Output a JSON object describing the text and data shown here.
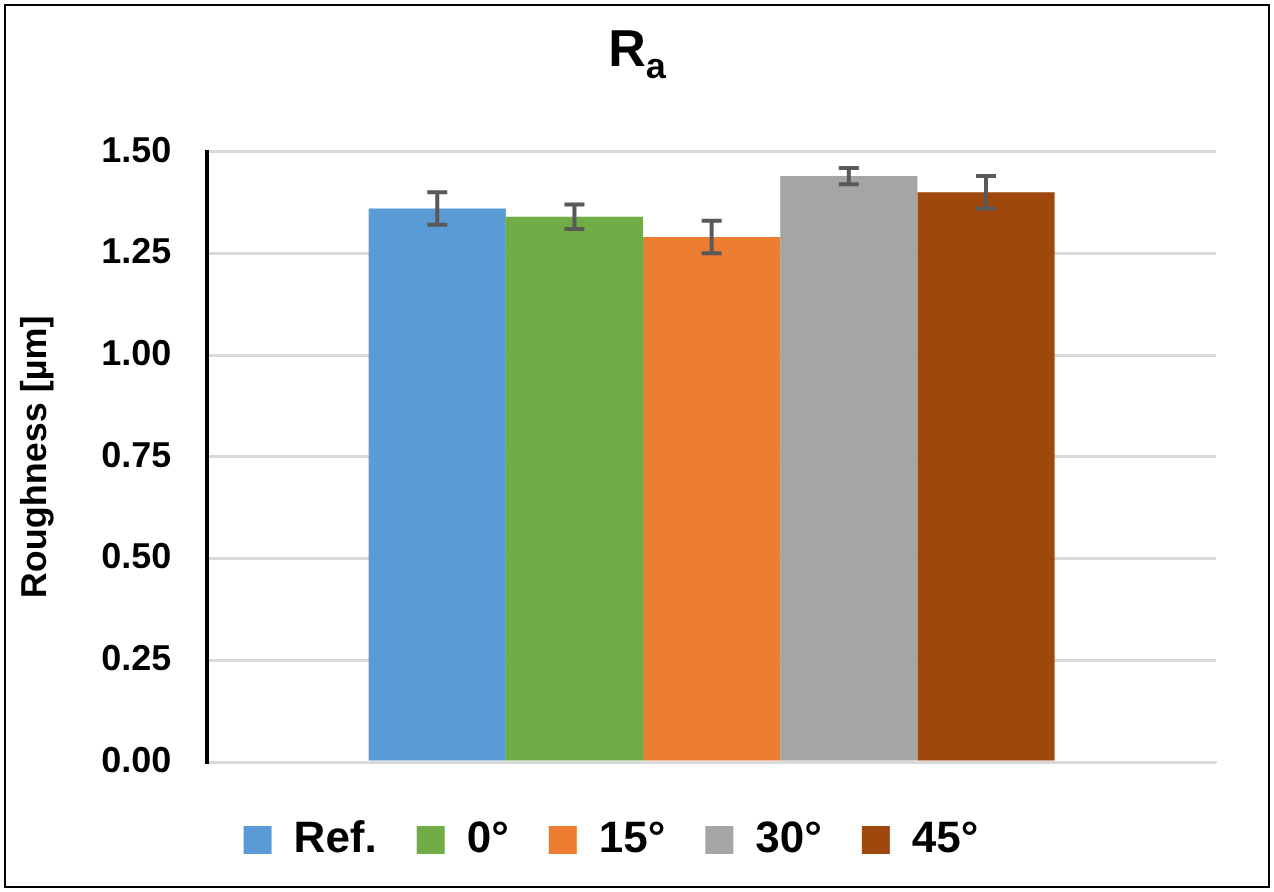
{
  "chart_data": {
    "type": "bar",
    "title": "R$_{a}$",
    "ylabel": "Roughness [µm]",
    "categories": [
      null
    ],
    "series": [
      {
        "name": "Ref.",
        "color": "#5b9bd5",
        "values": [
          1.36
        ],
        "errors": [
          0.04
        ]
      },
      {
        "name": "0°",
        "color": "#70ad47",
        "values": [
          1.34
        ],
        "errors": [
          0.03
        ]
      },
      {
        "name": "15°",
        "color": "#ed7d31",
        "values": [
          1.29
        ],
        "errors": [
          0.04
        ]
      },
      {
        "name": "30°",
        "color": "#a5a5a5",
        "values": [
          1.44
        ],
        "errors": [
          0.02
        ]
      },
      {
        "name": "45°",
        "color": "#9e480e",
        "values": [
          1.4
        ],
        "errors": [
          0.04
        ]
      }
    ],
    "ylim": [
      0,
      1.5
    ],
    "yticks": [
      {
        "value": 0,
        "label": "0.00"
      },
      {
        "value": 0.25,
        "label": "0.25"
      },
      {
        "value": 0.5,
        "label": "0.50"
      },
      {
        "value": 0.75,
        "label": "0.75"
      },
      {
        "value": 1,
        "label": "1.00"
      },
      {
        "value": 1.25,
        "label": "1.25"
      },
      {
        "value": 1.5,
        "label": "1.50"
      }
    ],
    "grid": "y",
    "legend": "bottom"
  }
}
